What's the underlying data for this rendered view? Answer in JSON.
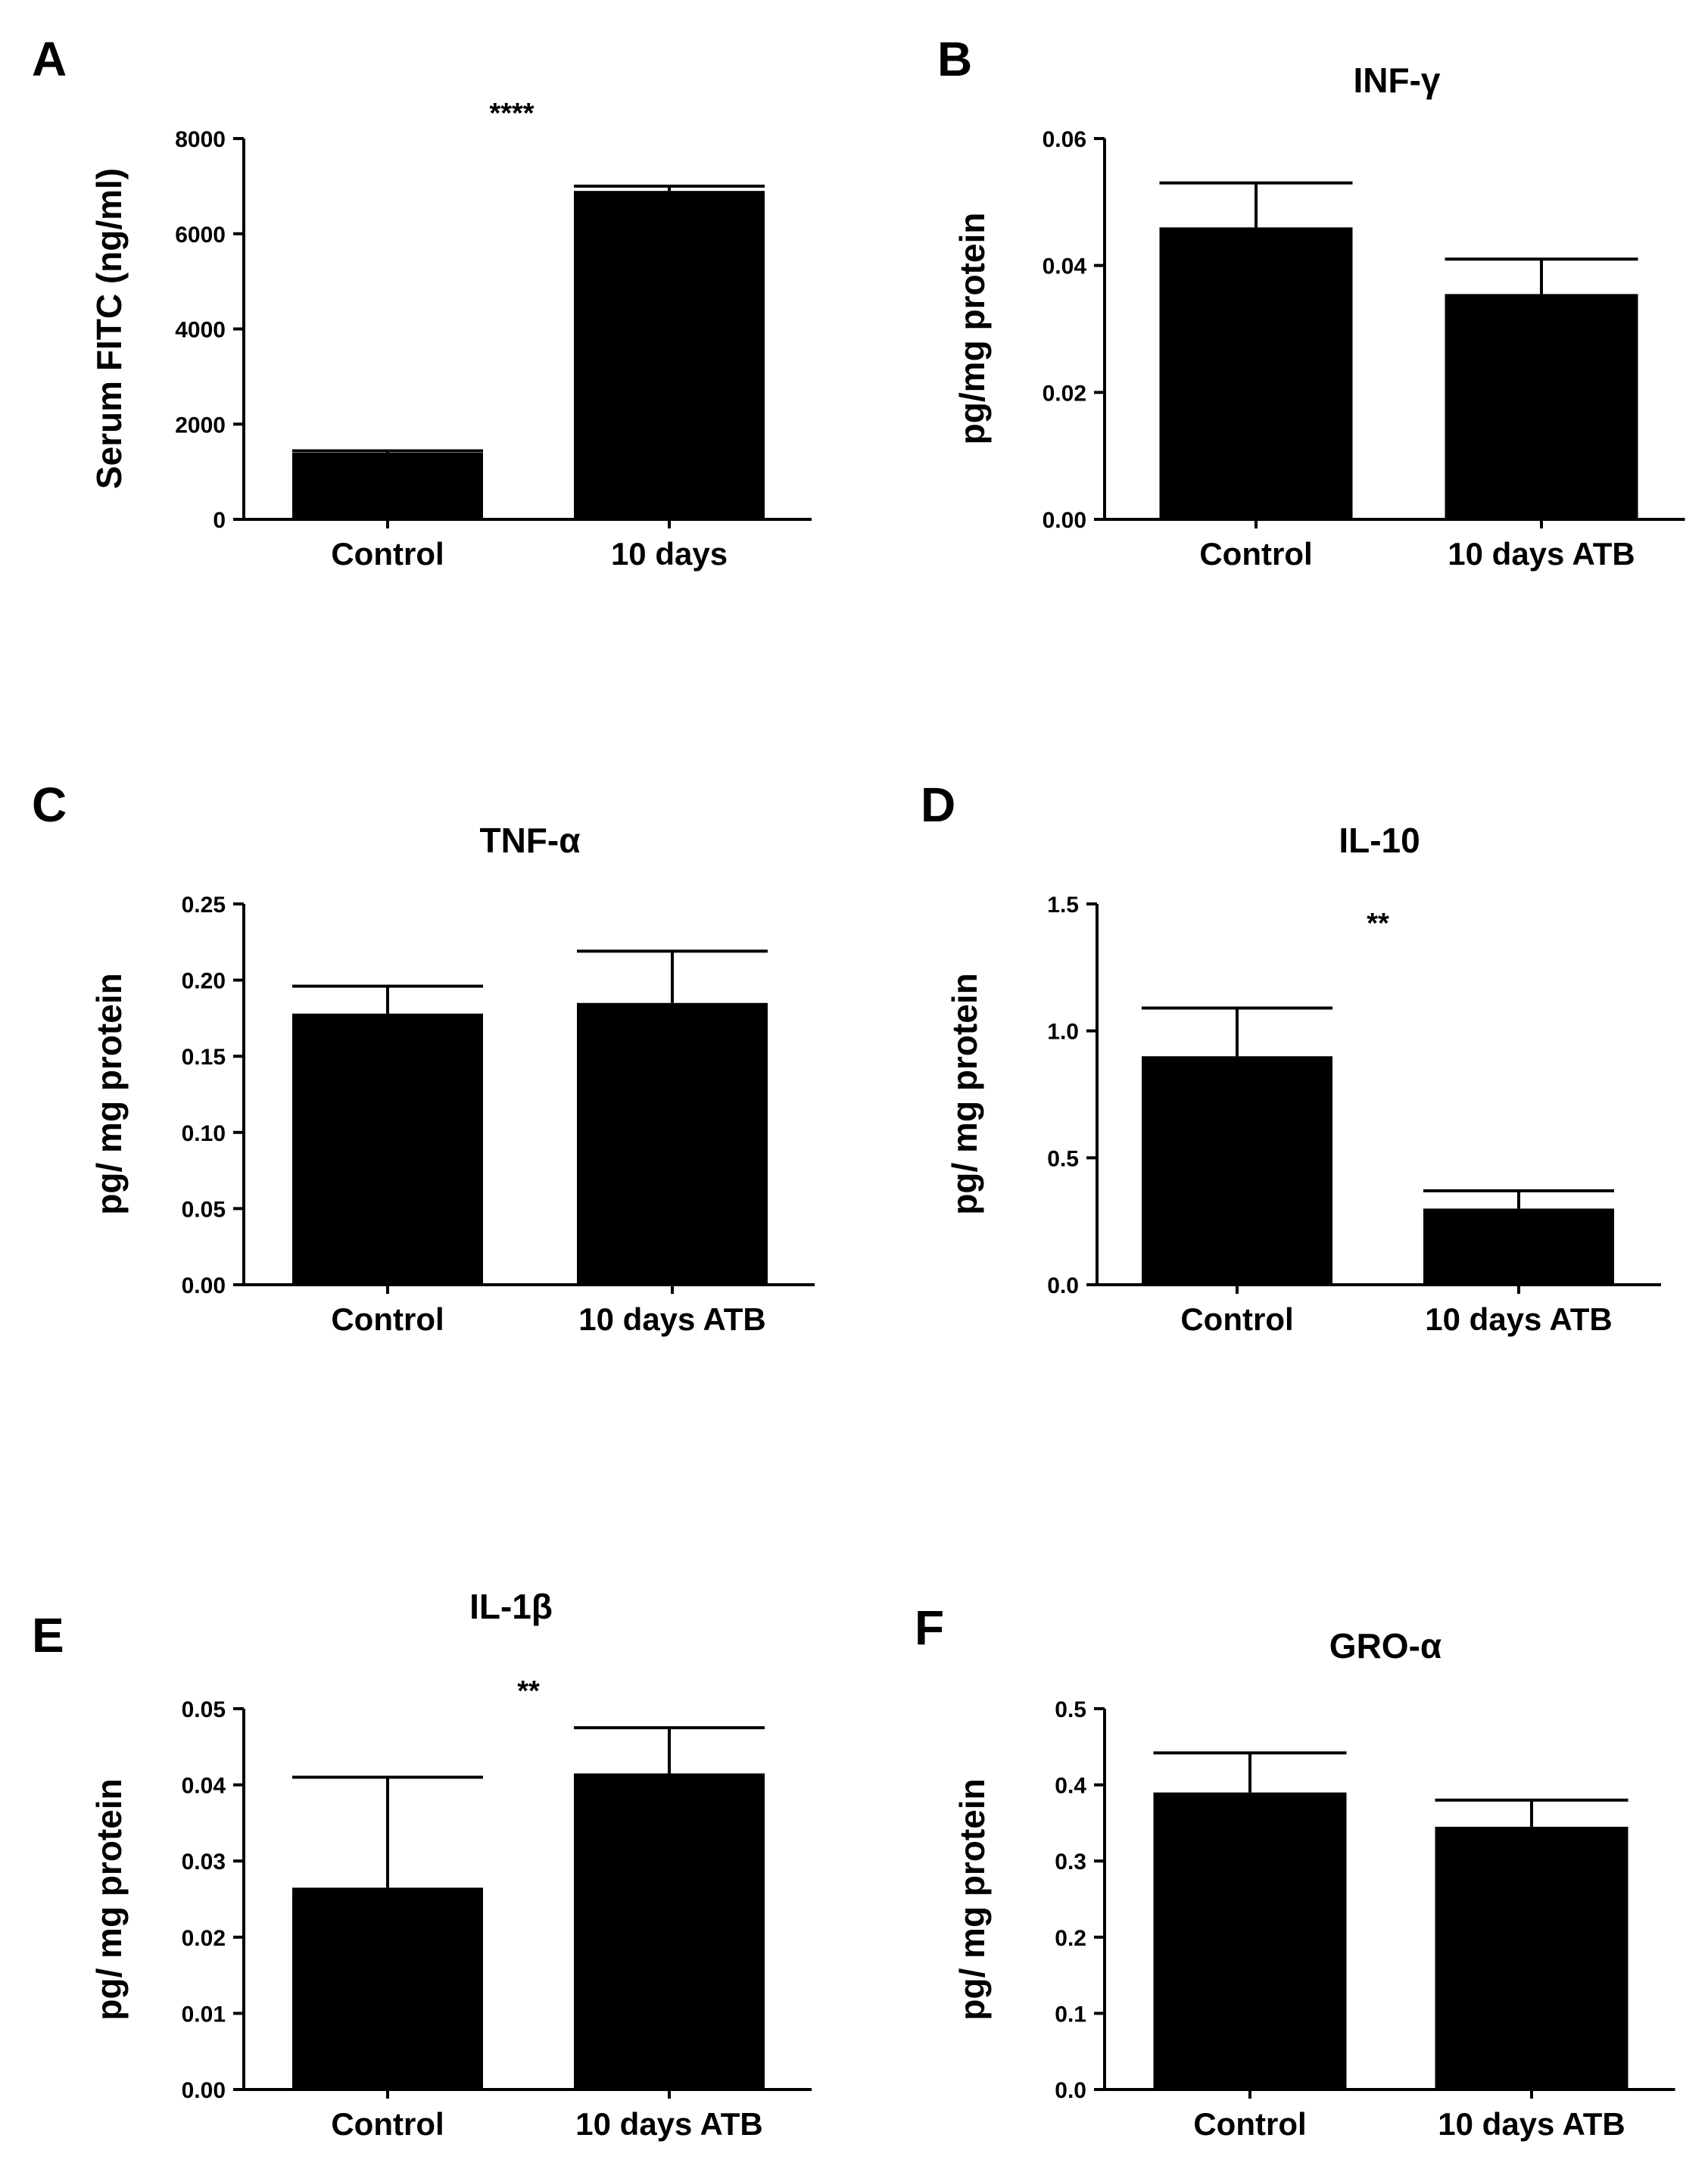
{
  "chart_data": [
    {
      "type": "bar",
      "panel": "A",
      "title": "",
      "ylabel": "Serum FITC (ng/ml)",
      "xlabel": "",
      "categories": [
        "Control",
        "10 days"
      ],
      "values": [
        1400,
        6900
      ],
      "errors": [
        40,
        100
      ],
      "ylim": [
        0,
        8000
      ],
      "yticks": [
        "0",
        "2000",
        "4000",
        "6000",
        "8000"
      ],
      "significance": "****",
      "grid": false
    },
    {
      "type": "bar",
      "panel": "B",
      "title": "INF-γ",
      "ylabel": "pg/mg protein",
      "xlabel": "",
      "categories": [
        "Control",
        "10 days ATB"
      ],
      "values": [
        0.046,
        0.0355
      ],
      "errors": [
        0.007,
        0.0055
      ],
      "ylim": [
        0,
        0.06
      ],
      "yticks": [
        "0.00",
        "0.02",
        "0.04",
        "0.06"
      ],
      "significance": "",
      "grid": false
    },
    {
      "type": "bar",
      "panel": "C",
      "title": "TNF-α",
      "ylabel": "pg/ mg protein",
      "xlabel": "",
      "categories": [
        "Control",
        "10 days ATB"
      ],
      "values": [
        0.178,
        0.185
      ],
      "errors": [
        0.018,
        0.034
      ],
      "ylim": [
        0,
        0.25
      ],
      "yticks": [
        "0.00",
        "0.05",
        "0.10",
        "0.15",
        "0.20",
        "0.25"
      ],
      "significance": "",
      "grid": false
    },
    {
      "type": "bar",
      "panel": "D",
      "title": "IL-10",
      "ylabel": "pg/ mg protein",
      "xlabel": "",
      "categories": [
        "Control",
        "10 days ATB"
      ],
      "values": [
        0.9,
        0.3
      ],
      "errors": [
        0.19,
        0.07
      ],
      "ylim": [
        0,
        1.5
      ],
      "yticks": [
        "0.0",
        "0.5",
        "1.0",
        "1.5"
      ],
      "significance": "**",
      "grid": false
    },
    {
      "type": "bar",
      "panel": "E",
      "title": "IL-1β",
      "ylabel": "pg/ mg protein",
      "xlabel": "",
      "categories": [
        "Control",
        "10 days ATB"
      ],
      "values": [
        0.0265,
        0.0415
      ],
      "errors": [
        0.0145,
        0.006
      ],
      "ylim": [
        0,
        0.05
      ],
      "yticks": [
        "0.00",
        "0.01",
        "0.02",
        "0.03",
        "0.04",
        "0.05"
      ],
      "significance": "**",
      "grid": false
    },
    {
      "type": "bar",
      "panel": "F",
      "title": "GRO-α",
      "ylabel": "pg/ mg protein",
      "xlabel": "",
      "categories": [
        "Control",
        "10 days ATB"
      ],
      "values": [
        0.39,
        0.345
      ],
      "errors": [
        0.052,
        0.035
      ],
      "ylim": [
        0,
        0.5
      ],
      "yticks": [
        "0.0",
        "0.1",
        "0.2",
        "0.3",
        "0.4",
        "0.5"
      ],
      "significance": "",
      "grid": false
    }
  ],
  "colors": {
    "bar": "#000000",
    "axis": "#000000",
    "background": "#ffffff"
  }
}
